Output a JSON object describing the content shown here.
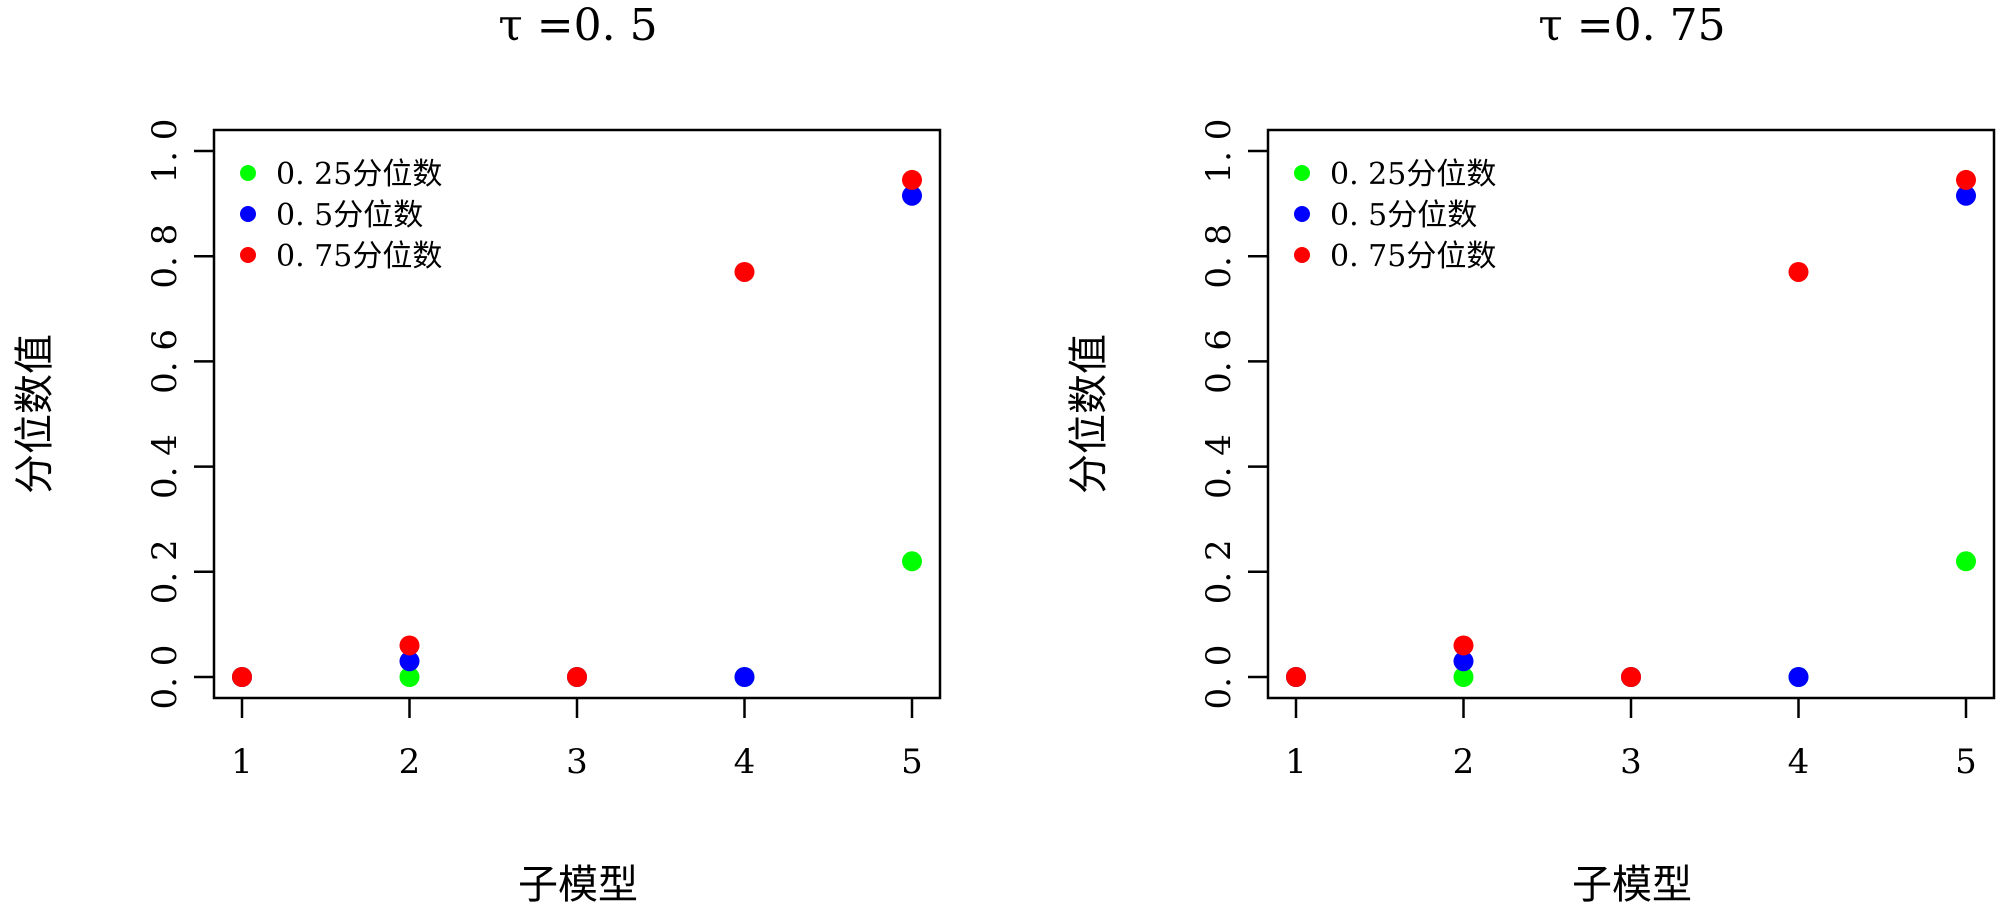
{
  "chart_data": [
    {
      "type": "scatter",
      "title": "τ =0. 5",
      "xlabel": "子模型",
      "ylabel": "分位数值",
      "x": [
        1,
        2,
        3,
        4,
        5
      ],
      "xticks": [
        "1",
        "2",
        "3",
        "4",
        "5"
      ],
      "yticks": [
        "0. 0",
        "0. 2",
        "0. 4",
        "0. 6",
        "0. 8",
        "1. 0"
      ],
      "ylim": [
        0,
        1
      ],
      "grid": false,
      "legend_position": "top-left",
      "series": [
        {
          "name": "0. 25分位数",
          "color": "#00ff00",
          "values": [
            0,
            0,
            0,
            0,
            0.22
          ]
        },
        {
          "name": "0. 5分位数",
          "color": "#0000ff",
          "values": [
            0,
            0.03,
            0,
            0,
            0.915
          ]
        },
        {
          "name": "0. 75分位数",
          "color": "#ff0000",
          "values": [
            0,
            0.06,
            0,
            0.77,
            0.945
          ]
        }
      ]
    },
    {
      "type": "scatter",
      "title": "τ =0. 75",
      "xlabel": "子模型",
      "ylabel": "分位数值",
      "x": [
        1,
        2,
        3,
        4,
        5
      ],
      "xticks": [
        "1",
        "2",
        "3",
        "4",
        "5"
      ],
      "yticks": [
        "0. 0",
        "0. 2",
        "0. 4",
        "0. 6",
        "0. 8",
        "1. 0"
      ],
      "ylim": [
        0,
        1
      ],
      "grid": false,
      "legend_position": "top-left",
      "series": [
        {
          "name": "0. 25分位数",
          "color": "#00ff00",
          "values": [
            0,
            0,
            0,
            0,
            0.22
          ]
        },
        {
          "name": "0. 5分位数",
          "color": "#0000ff",
          "values": [
            0,
            0.03,
            0,
            0,
            0.915
          ]
        },
        {
          "name": "0. 75分位数",
          "color": "#ff0000",
          "values": [
            0,
            0.06,
            0,
            0.77,
            0.945
          ]
        }
      ]
    }
  ]
}
